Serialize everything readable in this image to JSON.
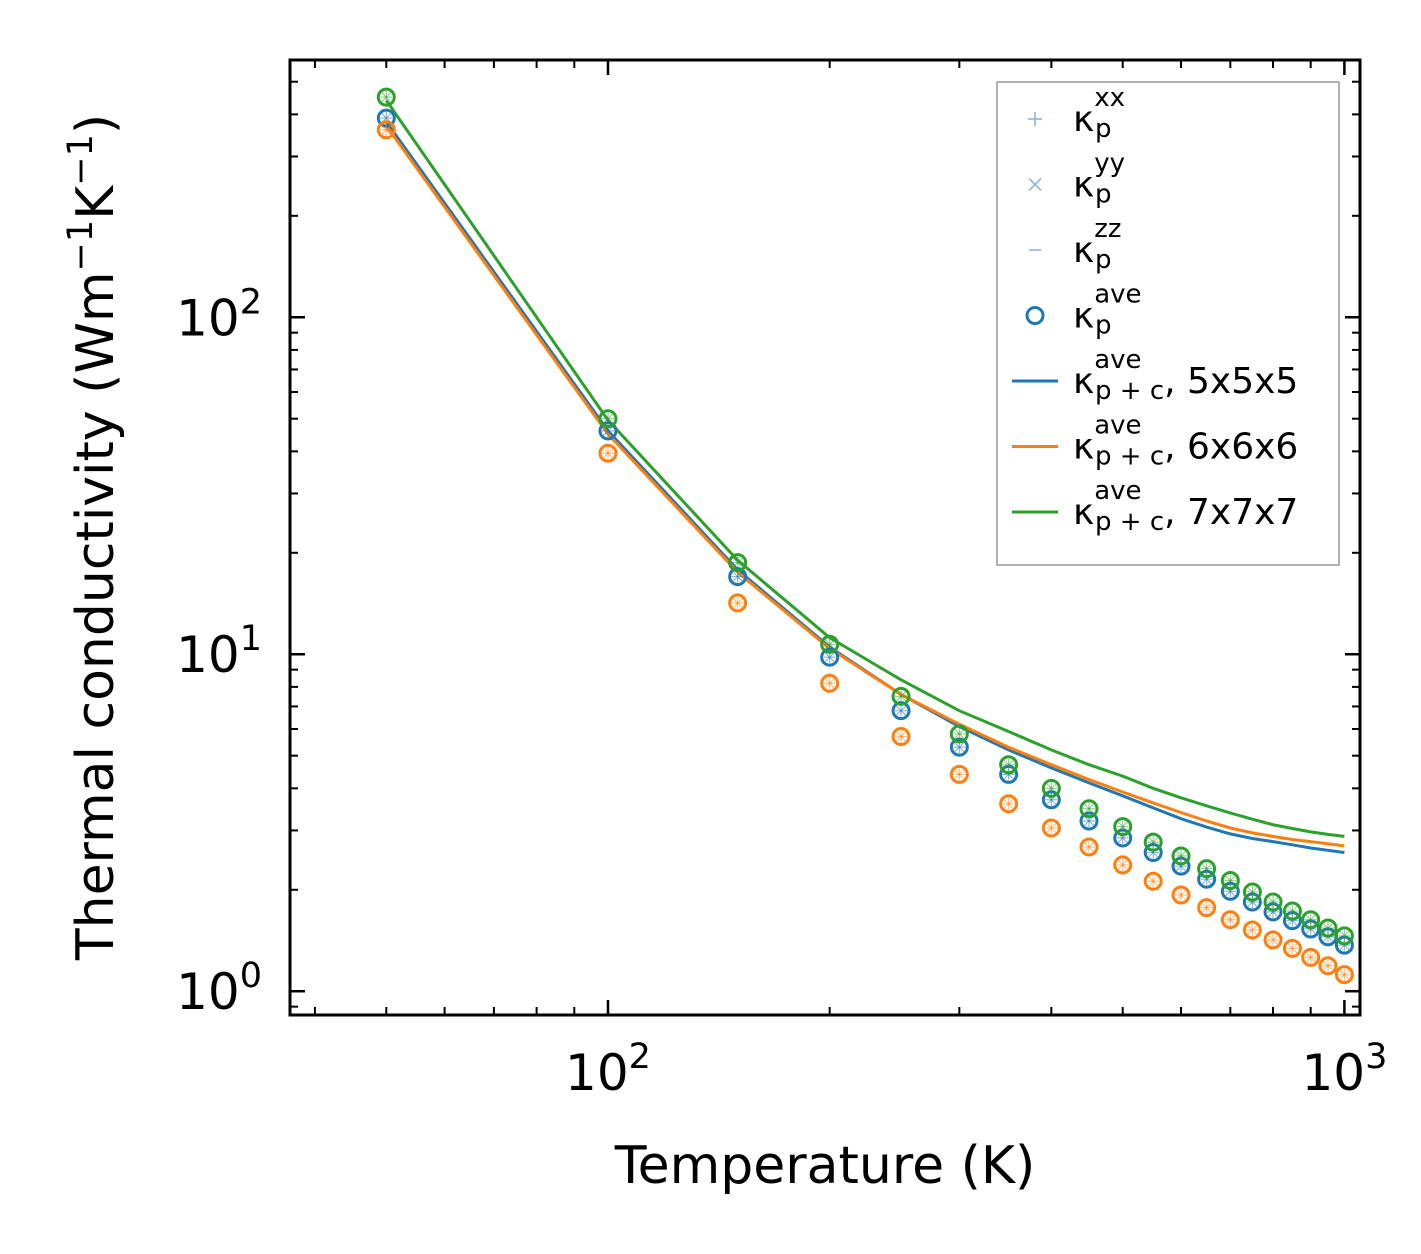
{
  "chart_data": {
    "type": "scatter",
    "xscale": "log",
    "yscale": "log",
    "xlabel": "Temperature (K)",
    "ylabel": "Thermal conductivity (Wm",
    "ylabel_sup1": "−1",
    "ylabel_mid": "K",
    "ylabel_sup2": "−1",
    "ylabel_end": ")",
    "xlim": [
      37,
      1050
    ],
    "ylim": [
      0.85,
      580
    ],
    "xticks": [
      {
        "value": 100,
        "base": "10",
        "exp": "2"
      },
      {
        "value": 1000,
        "base": "10",
        "exp": "3"
      }
    ],
    "yticks": [
      {
        "value": 1,
        "base": "10",
        "exp": "0"
      },
      {
        "value": 10,
        "base": "10",
        "exp": "1"
      },
      {
        "value": 100,
        "base": "10",
        "exp": "2"
      }
    ],
    "x": [
      50,
      100,
      150,
      200,
      250,
      300,
      350,
      400,
      450,
      500,
      550,
      600,
      650,
      700,
      750,
      800,
      850,
      900,
      950,
      1000
    ],
    "series": [
      {
        "name": "5x5x5",
        "color": "#1f77b4",
        "points": [
          390,
          46,
          17,
          9.8,
          6.8,
          5.3,
          4.4,
          3.7,
          3.2,
          2.85,
          2.58,
          2.35,
          2.15,
          1.98,
          1.84,
          1.72,
          1.62,
          1.53,
          1.45,
          1.37
        ],
        "line": [
          380,
          46,
          17.8,
          10.5,
          7.6,
          6.1,
          5.2,
          4.6,
          4.15,
          3.8,
          3.5,
          3.25,
          3.07,
          2.93,
          2.84,
          2.78,
          2.72,
          2.66,
          2.62,
          2.58
        ]
      },
      {
        "name": "6x6x6",
        "color": "#ff7f0e",
        "points": [
          360,
          39.5,
          14.2,
          8.2,
          5.7,
          4.4,
          3.6,
          3.05,
          2.68,
          2.37,
          2.12,
          1.93,
          1.77,
          1.63,
          1.52,
          1.42,
          1.34,
          1.26,
          1.19,
          1.12
        ],
        "line": [
          370,
          45,
          17.5,
          10.4,
          7.6,
          6.2,
          5.3,
          4.7,
          4.25,
          3.9,
          3.62,
          3.39,
          3.2,
          3.05,
          2.95,
          2.88,
          2.82,
          2.78,
          2.74,
          2.7
        ]
      },
      {
        "name": "7x7x7",
        "color": "#2ca02c",
        "points": [
          450,
          50,
          18.7,
          10.7,
          7.5,
          5.8,
          4.7,
          4.0,
          3.48,
          3.08,
          2.77,
          2.52,
          2.31,
          2.13,
          1.97,
          1.84,
          1.73,
          1.63,
          1.54,
          1.46
        ],
        "line": [
          440,
          49.5,
          19,
          11.2,
          8.4,
          6.8,
          5.9,
          5.2,
          4.7,
          4.35,
          4.0,
          3.75,
          3.55,
          3.38,
          3.24,
          3.12,
          3.04,
          2.97,
          2.92,
          2.88
        ]
      }
    ],
    "legend": {
      "position": "top-right",
      "entries": [
        {
          "marker": "plus",
          "symbol": "κ",
          "sub": "p",
          "sup": "xx",
          "suffix": ""
        },
        {
          "marker": "cross",
          "symbol": "κ",
          "sub": "p",
          "sup": "yy",
          "suffix": ""
        },
        {
          "marker": "dash",
          "symbol": "κ",
          "sub": "p",
          "sup": "zz",
          "suffix": ""
        },
        {
          "marker": "circle",
          "symbol": "κ",
          "sub": "p",
          "sup": "ave",
          "suffix": ""
        },
        {
          "marker": "line",
          "series": 0,
          "symbol": "κ",
          "sub": "p + c",
          "sup": "ave",
          "suffix": ", 5x5x5"
        },
        {
          "marker": "line",
          "series": 1,
          "symbol": "κ",
          "sub": "p + c",
          "sup": "ave",
          "suffix": ", 6x6x6"
        },
        {
          "marker": "line",
          "series": 2,
          "symbol": "κ",
          "sub": "p + c",
          "sup": "ave",
          "suffix": ", 7x7x7"
        }
      ]
    },
    "legend_marker_color": "#8fb6d9",
    "colors": {
      "axes": "#000000",
      "legend_border": "#999999"
    }
  }
}
